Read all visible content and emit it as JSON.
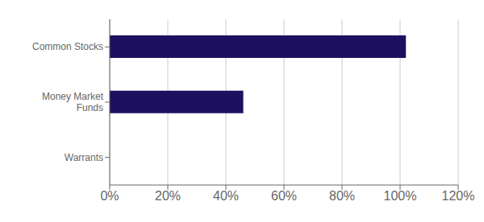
{
  "chart_data": {
    "type": "bar",
    "orientation": "horizontal",
    "categories": [
      "Warrants",
      "Money Market\nFunds",
      "Common Stocks"
    ],
    "values": [
      0.0,
      0.46,
      1.02
    ],
    "color": "#1e1060",
    "xlim": [
      0,
      1.2
    ],
    "xticks": [
      {
        "value": 0.0,
        "label": "0%"
      },
      {
        "value": 0.2,
        "label": "20%"
      },
      {
        "value": 0.4,
        "label": "40%"
      },
      {
        "value": 0.6,
        "label": "60%"
      },
      {
        "value": 0.8,
        "label": "80%"
      },
      {
        "value": 1.0,
        "label": "100%"
      },
      {
        "value": 1.2,
        "label": "120%"
      }
    ],
    "grid": true
  }
}
